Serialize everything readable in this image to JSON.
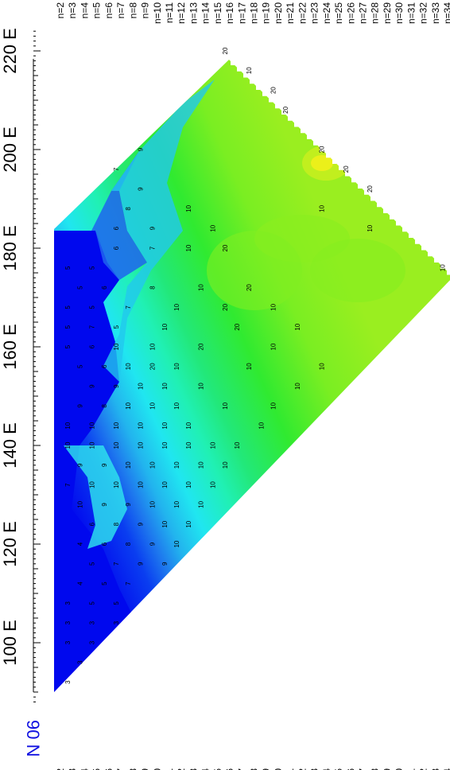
{
  "chart_data": {
    "type": "heatmap",
    "lat_label": "90 N",
    "lon_ticks": [
      "100 E",
      "120 E",
      "140 E",
      "160 E",
      "180 E",
      "200 E",
      "220 E"
    ],
    "lon_values": [
      100,
      120,
      140,
      160,
      180,
      200,
      220
    ],
    "lon_range": [
      88,
      224
    ],
    "n_labels": [
      "n=2",
      "n=3",
      "n=4",
      "n=5",
      "n=6",
      "n=7",
      "n=8",
      "n=9",
      "n=10",
      "n=11",
      "n=12",
      "n=13",
      "n=14",
      "n=15",
      "n=16",
      "n=17",
      "n=18",
      "n=19",
      "n=20",
      "n=21",
      "n=22",
      "n=23",
      "n=24",
      "n=25",
      "n=26",
      "n=27",
      "n=28",
      "n=29",
      "n=30",
      "n=31",
      "n=32",
      "n=33",
      "n=34"
    ],
    "color_scale": [
      "#0000ee",
      "#0a3ef0",
      "#1e78ee",
      "#22b4ee",
      "#20e6f0",
      "#20f0b4",
      "#22e87a",
      "#30ea30",
      "#7aee22",
      "#c8ee1e",
      "#f0f01a"
    ],
    "value_labels": [
      {
        "lon": 92,
        "n": 3,
        "v": "3"
      },
      {
        "lon": 96,
        "n": 4,
        "v": "3"
      },
      {
        "lon": 100,
        "n": 3,
        "v": "3"
      },
      {
        "lon": 100,
        "n": 5,
        "v": "3"
      },
      {
        "lon": 104,
        "n": 3,
        "v": "3"
      },
      {
        "lon": 104,
        "n": 5,
        "v": "3"
      },
      {
        "lon": 104,
        "n": 7,
        "v": "3"
      },
      {
        "lon": 108,
        "n": 3,
        "v": "3"
      },
      {
        "lon": 108,
        "n": 5,
        "v": "5"
      },
      {
        "lon": 108,
        "n": 7,
        "v": "5"
      },
      {
        "lon": 112,
        "n": 4,
        "v": "4"
      },
      {
        "lon": 112,
        "n": 6,
        "v": "5"
      },
      {
        "lon": 112,
        "n": 8,
        "v": "7"
      },
      {
        "lon": 116,
        "n": 5,
        "v": "5"
      },
      {
        "lon": 116,
        "n": 7,
        "v": "7"
      },
      {
        "lon": 116,
        "n": 9,
        "v": "9"
      },
      {
        "lon": 116,
        "n": 11,
        "v": "9"
      },
      {
        "lon": 120,
        "n": 4,
        "v": "4"
      },
      {
        "lon": 120,
        "n": 6,
        "v": "6"
      },
      {
        "lon": 120,
        "n": 8,
        "v": "8"
      },
      {
        "lon": 120,
        "n": 10,
        "v": "9"
      },
      {
        "lon": 120,
        "n": 12,
        "v": "10"
      },
      {
        "lon": 124,
        "n": 5,
        "v": "6"
      },
      {
        "lon": 124,
        "n": 7,
        "v": "8"
      },
      {
        "lon": 124,
        "n": 9,
        "v": "9"
      },
      {
        "lon": 124,
        "n": 11,
        "v": "10"
      },
      {
        "lon": 124,
        "n": 13,
        "v": "10"
      },
      {
        "lon": 128,
        "n": 4,
        "v": "10"
      },
      {
        "lon": 128,
        "n": 6,
        "v": "9"
      },
      {
        "lon": 128,
        "n": 8,
        "v": "9"
      },
      {
        "lon": 128,
        "n": 10,
        "v": "10"
      },
      {
        "lon": 128,
        "n": 12,
        "v": "10"
      },
      {
        "lon": 128,
        "n": 14,
        "v": "10"
      },
      {
        "lon": 132,
        "n": 3,
        "v": "7"
      },
      {
        "lon": 132,
        "n": 5,
        "v": "10"
      },
      {
        "lon": 132,
        "n": 7,
        "v": "10"
      },
      {
        "lon": 132,
        "n": 9,
        "v": "10"
      },
      {
        "lon": 132,
        "n": 11,
        "v": "10"
      },
      {
        "lon": 132,
        "n": 13,
        "v": "10"
      },
      {
        "lon": 132,
        "n": 15,
        "v": "10"
      },
      {
        "lon": 136,
        "n": 4,
        "v": "9"
      },
      {
        "lon": 136,
        "n": 6,
        "v": "9"
      },
      {
        "lon": 136,
        "n": 8,
        "v": "10"
      },
      {
        "lon": 136,
        "n": 10,
        "v": "10"
      },
      {
        "lon": 136,
        "n": 12,
        "v": "10"
      },
      {
        "lon": 136,
        "n": 14,
        "v": "10"
      },
      {
        "lon": 136,
        "n": 16,
        "v": "10"
      },
      {
        "lon": 140,
        "n": 3,
        "v": "10"
      },
      {
        "lon": 140,
        "n": 5,
        "v": "10"
      },
      {
        "lon": 140,
        "n": 7,
        "v": "10"
      },
      {
        "lon": 140,
        "n": 9,
        "v": "10"
      },
      {
        "lon": 140,
        "n": 11,
        "v": "10"
      },
      {
        "lon": 140,
        "n": 13,
        "v": "10"
      },
      {
        "lon": 140,
        "n": 15,
        "v": "10"
      },
      {
        "lon": 140,
        "n": 17,
        "v": "10"
      },
      {
        "lon": 144,
        "n": 3,
        "v": "10"
      },
      {
        "lon": 144,
        "n": 5,
        "v": "10"
      },
      {
        "lon": 144,
        "n": 7,
        "v": "10"
      },
      {
        "lon": 144,
        "n": 9,
        "v": "10"
      },
      {
        "lon": 144,
        "n": 11,
        "v": "10"
      },
      {
        "lon": 144,
        "n": 13,
        "v": "10"
      },
      {
        "lon": 144,
        "n": 19,
        "v": "10"
      },
      {
        "lon": 148,
        "n": 4,
        "v": "9"
      },
      {
        "lon": 148,
        "n": 6,
        "v": "8"
      },
      {
        "lon": 148,
        "n": 8,
        "v": "10"
      },
      {
        "lon": 148,
        "n": 10,
        "v": "10"
      },
      {
        "lon": 148,
        "n": 12,
        "v": "10"
      },
      {
        "lon": 148,
        "n": 16,
        "v": "10"
      },
      {
        "lon": 148,
        "n": 20,
        "v": "10"
      },
      {
        "lon": 152,
        "n": 5,
        "v": "9"
      },
      {
        "lon": 152,
        "n": 7,
        "v": "9"
      },
      {
        "lon": 152,
        "n": 9,
        "v": "10"
      },
      {
        "lon": 152,
        "n": 11,
        "v": "10"
      },
      {
        "lon": 152,
        "n": 14,
        "v": "10"
      },
      {
        "lon": 152,
        "n": 22,
        "v": "10"
      },
      {
        "lon": 156,
        "n": 4,
        "v": "5"
      },
      {
        "lon": 156,
        "n": 6,
        "v": "6"
      },
      {
        "lon": 156,
        "n": 8,
        "v": "10"
      },
      {
        "lon": 156,
        "n": 10,
        "v": "20"
      },
      {
        "lon": 156,
        "n": 12,
        "v": "10"
      },
      {
        "lon": 156,
        "n": 18,
        "v": "10"
      },
      {
        "lon": 156,
        "n": 24,
        "v": "10"
      },
      {
        "lon": 160,
        "n": 3,
        "v": "5"
      },
      {
        "lon": 160,
        "n": 5,
        "v": "6"
      },
      {
        "lon": 160,
        "n": 7,
        "v": "10"
      },
      {
        "lon": 160,
        "n": 10,
        "v": "10"
      },
      {
        "lon": 160,
        "n": 14,
        "v": "20"
      },
      {
        "lon": 160,
        "n": 20,
        "v": "10"
      },
      {
        "lon": 164,
        "n": 3,
        "v": "5"
      },
      {
        "lon": 164,
        "n": 5,
        "v": "7"
      },
      {
        "lon": 164,
        "n": 7,
        "v": "5"
      },
      {
        "lon": 164,
        "n": 11,
        "v": "10"
      },
      {
        "lon": 164,
        "n": 17,
        "v": "20"
      },
      {
        "lon": 164,
        "n": 22,
        "v": "10"
      },
      {
        "lon": 168,
        "n": 3,
        "v": "5"
      },
      {
        "lon": 168,
        "n": 5,
        "v": "5"
      },
      {
        "lon": 168,
        "n": 8,
        "v": "7"
      },
      {
        "lon": 168,
        "n": 12,
        "v": "10"
      },
      {
        "lon": 168,
        "n": 16,
        "v": "20"
      },
      {
        "lon": 168,
        "n": 20,
        "v": "10"
      },
      {
        "lon": 172,
        "n": 4,
        "v": "5"
      },
      {
        "lon": 172,
        "n": 6,
        "v": "6"
      },
      {
        "lon": 172,
        "n": 10,
        "v": "8"
      },
      {
        "lon": 172,
        "n": 14,
        "v": "10"
      },
      {
        "lon": 172,
        "n": 18,
        "v": "20"
      },
      {
        "lon": 176,
        "n": 3,
        "v": "5"
      },
      {
        "lon": 176,
        "n": 5,
        "v": "5"
      },
      {
        "lon": 176,
        "n": 34,
        "v": "10"
      },
      {
        "lon": 180,
        "n": 7,
        "v": "6"
      },
      {
        "lon": 180,
        "n": 10,
        "v": "7"
      },
      {
        "lon": 180,
        "n": 13,
        "v": "10"
      },
      {
        "lon": 180,
        "n": 16,
        "v": "20"
      },
      {
        "lon": 184,
        "n": 7,
        "v": "6"
      },
      {
        "lon": 184,
        "n": 10,
        "v": "9"
      },
      {
        "lon": 184,
        "n": 15,
        "v": "10"
      },
      {
        "lon": 184,
        "n": 28,
        "v": "10"
      },
      {
        "lon": 188,
        "n": 8,
        "v": "8"
      },
      {
        "lon": 188,
        "n": 13,
        "v": "10"
      },
      {
        "lon": 188,
        "n": 24,
        "v": "10"
      },
      {
        "lon": 192,
        "n": 9,
        "v": "9"
      },
      {
        "lon": 192,
        "n": 28,
        "v": "20"
      },
      {
        "lon": 196,
        "n": 7,
        "v": "7"
      },
      {
        "lon": 196,
        "n": 26,
        "v": "20"
      },
      {
        "lon": 200,
        "n": 9,
        "v": "9"
      },
      {
        "lon": 200,
        "n": 24,
        "v": "20"
      },
      {
        "lon": 208,
        "n": 21,
        "v": "20"
      },
      {
        "lon": 212,
        "n": 20,
        "v": "20"
      },
      {
        "lon": 216,
        "n": 18,
        "v": "10"
      },
      {
        "lon": 220,
        "n": 16,
        "v": "20"
      }
    ]
  }
}
